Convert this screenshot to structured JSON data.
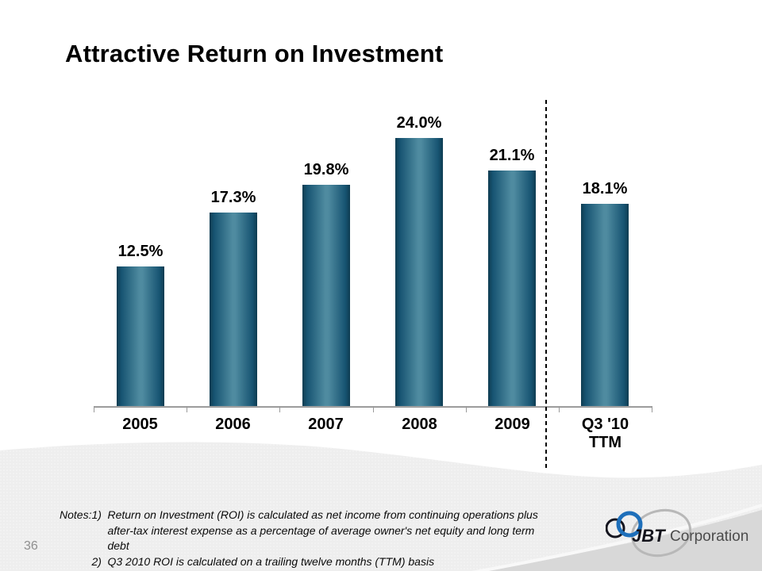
{
  "slide": {
    "title": "Attractive Return on Investment",
    "page_number": "36",
    "notes": {
      "label": "Notes:",
      "items": [
        {
          "num": "1)",
          "text": "Return on Investment (ROI) is calculated as net income from continuing operations plus\nafter-tax interest expense as a percentage of average owner's net equity and long term\ndebt"
        },
        {
          "num": "2)",
          "text": "Q3 2010 ROI is calculated on a trailing twelve months (TTM) basis"
        }
      ]
    },
    "logo": {
      "jbt_text": "JBT",
      "corporation_text": "Corporation",
      "blue": "#1e6fba",
      "gray_arc": "#b8b8b8",
      "dark": "#15151f",
      "corporation_color": "#4c4c4c"
    }
  },
  "chart_data": {
    "type": "bar",
    "title": "",
    "xlabel": "",
    "ylabel": "",
    "categories": [
      "2005",
      "2006",
      "2007",
      "2008",
      "2009",
      "Q3 '10\nTTM"
    ],
    "values": [
      12.5,
      17.3,
      19.8,
      24.0,
      21.1,
      18.1
    ],
    "value_labels": [
      "12.5%",
      "17.3%",
      "19.8%",
      "24.0%",
      "21.1%",
      "18.1%"
    ],
    "units": "%",
    "ylim": [
      0,
      26
    ],
    "grid": false,
    "legend": "none",
    "axis_color": "#a8a8a8",
    "bar_gradient": [
      "#0e3c51",
      "#4f8ba0"
    ],
    "separator": {
      "style": "dashed-vertical-line",
      "color": "#000000",
      "between": [
        "2009",
        "Q3 '10 TTM"
      ]
    }
  }
}
